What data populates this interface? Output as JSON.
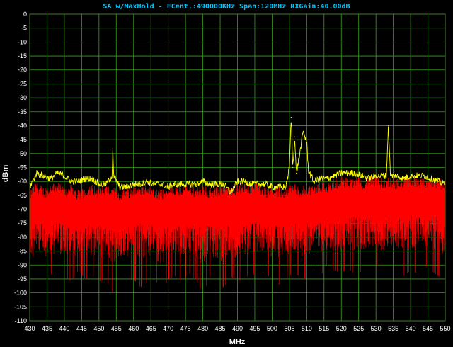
{
  "chart_data": {
    "type": "line",
    "title": "SA w/MaxHold - FCent.:490000KHz Span:120MHz RXGain:40.00dB",
    "xlabel": "MHz",
    "ylabel": "dBm",
    "xlim": [
      430,
      550
    ],
    "ylim": [
      -110,
      0
    ],
    "xticks": [
      430,
      435,
      440,
      445,
      450,
      455,
      460,
      465,
      470,
      475,
      480,
      485,
      490,
      495,
      500,
      505,
      510,
      515,
      520,
      525,
      530,
      535,
      540,
      545,
      550
    ],
    "yticks": [
      0,
      -5,
      -10,
      -15,
      -20,
      -25,
      -30,
      -35,
      -40,
      -45,
      -50,
      -55,
      -60,
      -65,
      -70,
      -75,
      -80,
      -85,
      -90,
      -95,
      -100,
      -105,
      -110
    ],
    "grid": true,
    "series": [
      {
        "role": "max-hold",
        "color": "#ffff00",
        "x": [
          430,
          432,
          434,
          436,
          438,
          440,
          442,
          444,
          446,
          448,
          450,
          452,
          453.8,
          454,
          454.2,
          456,
          458,
          460,
          462,
          464,
          466,
          468,
          470,
          472,
          474,
          476,
          478,
          480,
          482,
          484,
          486,
          488,
          490,
          492,
          494,
          496,
          498,
          500,
          502,
          504,
          505,
          505.5,
          506,
          506.5,
          507,
          508,
          509,
          510,
          510.5,
          512,
          514,
          516,
          518,
          520,
          522,
          524,
          526,
          528,
          530,
          532,
          533,
          533.6,
          534.2,
          536,
          538,
          540,
          542,
          544,
          546,
          548,
          550
        ],
        "values": [
          -62,
          -57,
          -58,
          -59,
          -57,
          -58,
          -60,
          -60,
          -59,
          -59,
          -61,
          -61,
          -58,
          -48,
          -58,
          -62,
          -62,
          -61,
          -61,
          -60,
          -61,
          -61,
          -62,
          -61,
          -61,
          -61,
          -61,
          -60,
          -61,
          -61,
          -61,
          -64,
          -60,
          -60,
          -61,
          -61,
          -61,
          -62,
          -62,
          -62,
          -55,
          -37,
          -55,
          -44,
          -57,
          -50,
          -42,
          -46,
          -56,
          -60,
          -59,
          -59,
          -58,
          -57,
          -57,
          -57,
          -58,
          -59,
          -58,
          -58,
          -58,
          -40,
          -58,
          -58,
          -59,
          -58,
          -58,
          -58,
          -59,
          -60,
          -61
        ]
      },
      {
        "role": "live-trace",
        "color": "#ff0000",
        "x": [
          430,
          432,
          434,
          436,
          438,
          440,
          442,
          444,
          446,
          448,
          450,
          452,
          454,
          456,
          458,
          460,
          462,
          464,
          466,
          468,
          470,
          472,
          474,
          476,
          478,
          480,
          482,
          484,
          486,
          488,
          490,
          492,
          494,
          496,
          498,
          500,
          502,
          504,
          506,
          508,
          510,
          512,
          514,
          516,
          518,
          520,
          522,
          524,
          526,
          528,
          530,
          532,
          534,
          536,
          538,
          540,
          542,
          544,
          546,
          548,
          550
        ],
        "values": [
          -73,
          -70,
          -72,
          -71,
          -70,
          -72,
          -71,
          -73,
          -72,
          -71,
          -72,
          -71,
          -72,
          -73,
          -72,
          -72,
          -71,
          -71,
          -72,
          -73,
          -72,
          -72,
          -71,
          -71,
          -72,
          -71,
          -72,
          -72,
          -71,
          -72,
          -71,
          -70,
          -71,
          -70,
          -72,
          -71,
          -72,
          -72,
          -70,
          -72,
          -71,
          -71,
          -70,
          -70,
          -69,
          -68,
          -69,
          -68,
          -69,
          -68,
          -68,
          -69,
          -68,
          -69,
          -68,
          -68,
          -69,
          -69,
          -68,
          -69,
          -70
        ],
        "min_values": [
          -98,
          -94,
          -95,
          -93,
          -95,
          -94,
          -96,
          -92,
          -95,
          -94,
          -96,
          -95,
          -100,
          -94,
          -96,
          -95,
          -98,
          -96,
          -94,
          -100,
          -95,
          -94,
          -96,
          -93,
          -95,
          -101,
          -94,
          -96,
          -98,
          -94,
          -96,
          -95,
          -93,
          -94,
          -92,
          -96,
          -97,
          -95,
          -93,
          -94,
          -95,
          -92,
          -94,
          -90,
          -92,
          -93,
          -91,
          -94,
          -92,
          -93,
          -90,
          -94,
          -92,
          -91,
          -94,
          -92,
          -93,
          -90,
          -92,
          -94,
          -95
        ]
      }
    ]
  }
}
